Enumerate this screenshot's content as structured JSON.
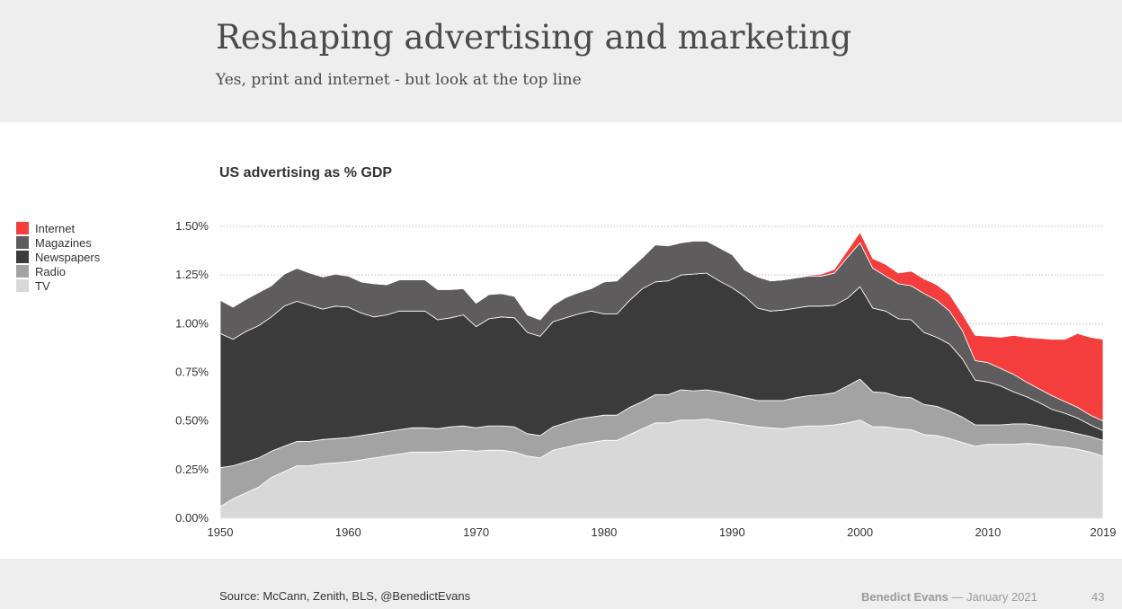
{
  "slide": {
    "title": "Reshaping advertising and marketing",
    "subtitle": "Yes, print and internet - but look at the top line",
    "footer_source": "Source: McCann, Zenith, BLS, @BenedictEvans",
    "footer_author": "Benedict Evans",
    "footer_separator": "—",
    "footer_date": "January 2021",
    "page_number": "43"
  },
  "colors": {
    "background_band": "#eeeeee",
    "title_text": "#4a4a4a",
    "muted_text": "#9a9a9a",
    "gridline": "#bbbbbb"
  },
  "chart_data": {
    "type": "area",
    "stacked": true,
    "title": "US advertising as % GDP",
    "xlabel": "",
    "ylabel": "",
    "x": [
      1950,
      1951,
      1952,
      1953,
      1954,
      1955,
      1956,
      1957,
      1958,
      1959,
      1960,
      1961,
      1962,
      1963,
      1964,
      1965,
      1966,
      1967,
      1968,
      1969,
      1970,
      1971,
      1972,
      1973,
      1974,
      1975,
      1976,
      1977,
      1978,
      1979,
      1980,
      1981,
      1982,
      1983,
      1984,
      1985,
      1986,
      1987,
      1988,
      1989,
      1990,
      1991,
      1992,
      1993,
      1994,
      1995,
      1996,
      1997,
      1998,
      1999,
      2000,
      2001,
      2002,
      2003,
      2004,
      2005,
      2006,
      2007,
      2008,
      2009,
      2010,
      2011,
      2012,
      2013,
      2014,
      2015,
      2016,
      2017,
      2018,
      2019
    ],
    "x_ticks": [
      "1950",
      "1960",
      "1970",
      "1980",
      "1990",
      "2000",
      "2010",
      "2019"
    ],
    "y_ticks": [
      "0.00%",
      "0.25%",
      "0.50%",
      "0.75%",
      "1.00%",
      "1.25%",
      "1.50%"
    ],
    "ylim": [
      0,
      1.5
    ],
    "xlim": [
      1950,
      2019
    ],
    "y_unit": "%",
    "grid": "horizontal dotted",
    "legend_position": "left",
    "series": [
      {
        "name": "TV",
        "color": "#d8d8d8",
        "values": [
          0.06,
          0.1,
          0.13,
          0.16,
          0.21,
          0.24,
          0.27,
          0.27,
          0.28,
          0.285,
          0.29,
          0.3,
          0.31,
          0.32,
          0.33,
          0.34,
          0.34,
          0.34,
          0.345,
          0.35,
          0.345,
          0.35,
          0.35,
          0.34,
          0.32,
          0.31,
          0.35,
          0.365,
          0.38,
          0.39,
          0.4,
          0.4,
          0.43,
          0.46,
          0.49,
          0.49,
          0.505,
          0.505,
          0.51,
          0.5,
          0.49,
          0.48,
          0.47,
          0.465,
          0.46,
          0.47,
          0.475,
          0.475,
          0.48,
          0.49,
          0.505,
          0.47,
          0.47,
          0.46,
          0.455,
          0.43,
          0.425,
          0.41,
          0.39,
          0.37,
          0.38,
          0.38,
          0.38,
          0.385,
          0.38,
          0.37,
          0.365,
          0.355,
          0.34,
          0.32
        ]
      },
      {
        "name": "Radio",
        "color": "#a3a3a3",
        "values": [
          0.2,
          0.17,
          0.16,
          0.15,
          0.135,
          0.13,
          0.125,
          0.125,
          0.125,
          0.125,
          0.125,
          0.125,
          0.125,
          0.125,
          0.125,
          0.125,
          0.125,
          0.12,
          0.125,
          0.125,
          0.12,
          0.125,
          0.125,
          0.13,
          0.115,
          0.115,
          0.12,
          0.125,
          0.13,
          0.13,
          0.13,
          0.13,
          0.14,
          0.14,
          0.145,
          0.145,
          0.155,
          0.15,
          0.15,
          0.15,
          0.145,
          0.14,
          0.135,
          0.14,
          0.145,
          0.15,
          0.155,
          0.16,
          0.165,
          0.19,
          0.21,
          0.18,
          0.175,
          0.165,
          0.165,
          0.155,
          0.15,
          0.14,
          0.13,
          0.11,
          0.1,
          0.1,
          0.105,
          0.1,
          0.095,
          0.09,
          0.085,
          0.08,
          0.08,
          0.08
        ]
      },
      {
        "name": "Newspapers",
        "color": "#3b3b3b",
        "values": [
          0.69,
          0.65,
          0.67,
          0.68,
          0.69,
          0.72,
          0.72,
          0.7,
          0.67,
          0.68,
          0.67,
          0.63,
          0.6,
          0.6,
          0.61,
          0.6,
          0.6,
          0.56,
          0.56,
          0.57,
          0.52,
          0.55,
          0.56,
          0.56,
          0.52,
          0.51,
          0.54,
          0.54,
          0.54,
          0.545,
          0.52,
          0.52,
          0.55,
          0.58,
          0.58,
          0.585,
          0.59,
          0.6,
          0.6,
          0.57,
          0.55,
          0.52,
          0.475,
          0.46,
          0.465,
          0.46,
          0.46,
          0.455,
          0.45,
          0.45,
          0.475,
          0.43,
          0.42,
          0.4,
          0.4,
          0.37,
          0.355,
          0.345,
          0.3,
          0.23,
          0.22,
          0.2,
          0.165,
          0.14,
          0.12,
          0.1,
          0.09,
          0.08,
          0.06,
          0.05
        ]
      },
      {
        "name": "Magazines",
        "color": "#5e5c5c",
        "values": [
          0.17,
          0.165,
          0.165,
          0.17,
          0.16,
          0.165,
          0.17,
          0.165,
          0.165,
          0.165,
          0.16,
          0.16,
          0.17,
          0.155,
          0.16,
          0.16,
          0.16,
          0.155,
          0.145,
          0.135,
          0.12,
          0.125,
          0.12,
          0.11,
          0.09,
          0.085,
          0.085,
          0.105,
          0.11,
          0.115,
          0.165,
          0.17,
          0.16,
          0.16,
          0.19,
          0.18,
          0.165,
          0.17,
          0.165,
          0.17,
          0.17,
          0.135,
          0.16,
          0.155,
          0.155,
          0.155,
          0.155,
          0.155,
          0.165,
          0.21,
          0.225,
          0.205,
          0.18,
          0.18,
          0.175,
          0.2,
          0.19,
          0.17,
          0.145,
          0.1,
          0.1,
          0.09,
          0.09,
          0.075,
          0.07,
          0.07,
          0.06,
          0.055,
          0.05,
          0.05
        ]
      },
      {
        "name": "Internet",
        "color": "#f43d3d",
        "values": [
          0,
          0,
          0,
          0,
          0,
          0,
          0,
          0,
          0,
          0,
          0,
          0,
          0,
          0,
          0,
          0,
          0,
          0,
          0,
          0,
          0,
          0,
          0,
          0,
          0,
          0,
          0,
          0,
          0,
          0,
          0,
          0,
          0,
          0,
          0,
          0,
          0,
          0,
          0,
          0,
          0,
          0,
          0,
          0,
          0,
          0,
          0.005,
          0.01,
          0.02,
          0.035,
          0.055,
          0.05,
          0.06,
          0.055,
          0.075,
          0.075,
          0.08,
          0.085,
          0.085,
          0.13,
          0.135,
          0.16,
          0.2,
          0.23,
          0.26,
          0.29,
          0.32,
          0.38,
          0.4,
          0.42
        ]
      }
    ]
  }
}
